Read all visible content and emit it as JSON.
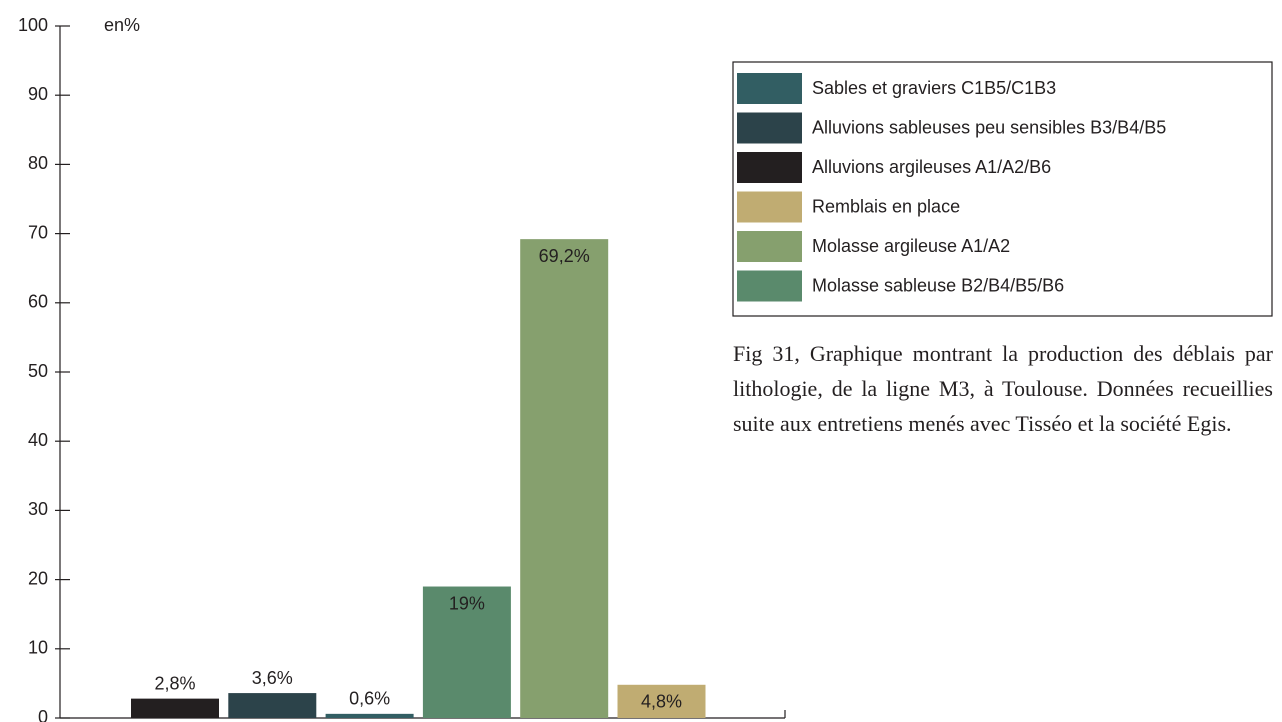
{
  "chart_data": {
    "type": "bar",
    "y_label": "en%",
    "categories": [
      null,
      null,
      null,
      null,
      null,
      null
    ],
    "series": [
      {
        "name": "Sables et graviers C1B5/C1B3",
        "color": "#325e63",
        "values": [
          null,
          null,
          0.6,
          null,
          null,
          null
        ],
        "value_labels": [
          null,
          null,
          "0,6%",
          null,
          null,
          null
        ]
      },
      {
        "name": "Alluvions sableuses peu sensibles B3/B4/B5",
        "color": "#2c434a",
        "values": [
          null,
          3.6,
          null,
          null,
          null,
          null
        ],
        "value_labels": [
          null,
          "3,6%",
          null,
          null,
          null,
          null
        ]
      },
      {
        "name": "Alluvions argileuses A1/A2/B6",
        "color": "#231f20",
        "values": [
          2.8,
          null,
          null,
          null,
          null,
          null
        ],
        "value_labels": [
          "2,8%",
          null,
          null,
          null,
          null,
          null
        ]
      },
      {
        "name": "Remblais en place",
        "color": "#c0ac72",
        "values": [
          null,
          null,
          null,
          null,
          null,
          4.8
        ],
        "value_labels": [
          null,
          null,
          null,
          null,
          null,
          "4,8%"
        ]
      },
      {
        "name": "Molasse argileuse A1/A2",
        "color": "#86a06e",
        "values": [
          null,
          null,
          null,
          null,
          69.2,
          null
        ],
        "value_labels": [
          null,
          null,
          null,
          null,
          "69,2%",
          null
        ]
      },
      {
        "name": "Molasse sableuse B2/B4/B5/B6",
        "color": "#5a8a6c",
        "values": [
          null,
          null,
          null,
          19,
          null,
          null
        ],
        "value_labels": [
          null,
          null,
          null,
          "19%",
          null,
          null
        ]
      }
    ],
    "ylim": [
      0,
      100
    ],
    "yticks": [
      0,
      10,
      20,
      30,
      40,
      50,
      60,
      70,
      80,
      90,
      100
    ],
    "caption": "Fig 31, Graphique montrant la production des déblais par lithologie, de la ligne M3, à Toulouse. Données recueillies suite aux entretiens menés avec Tisséo et la société Egis."
  }
}
